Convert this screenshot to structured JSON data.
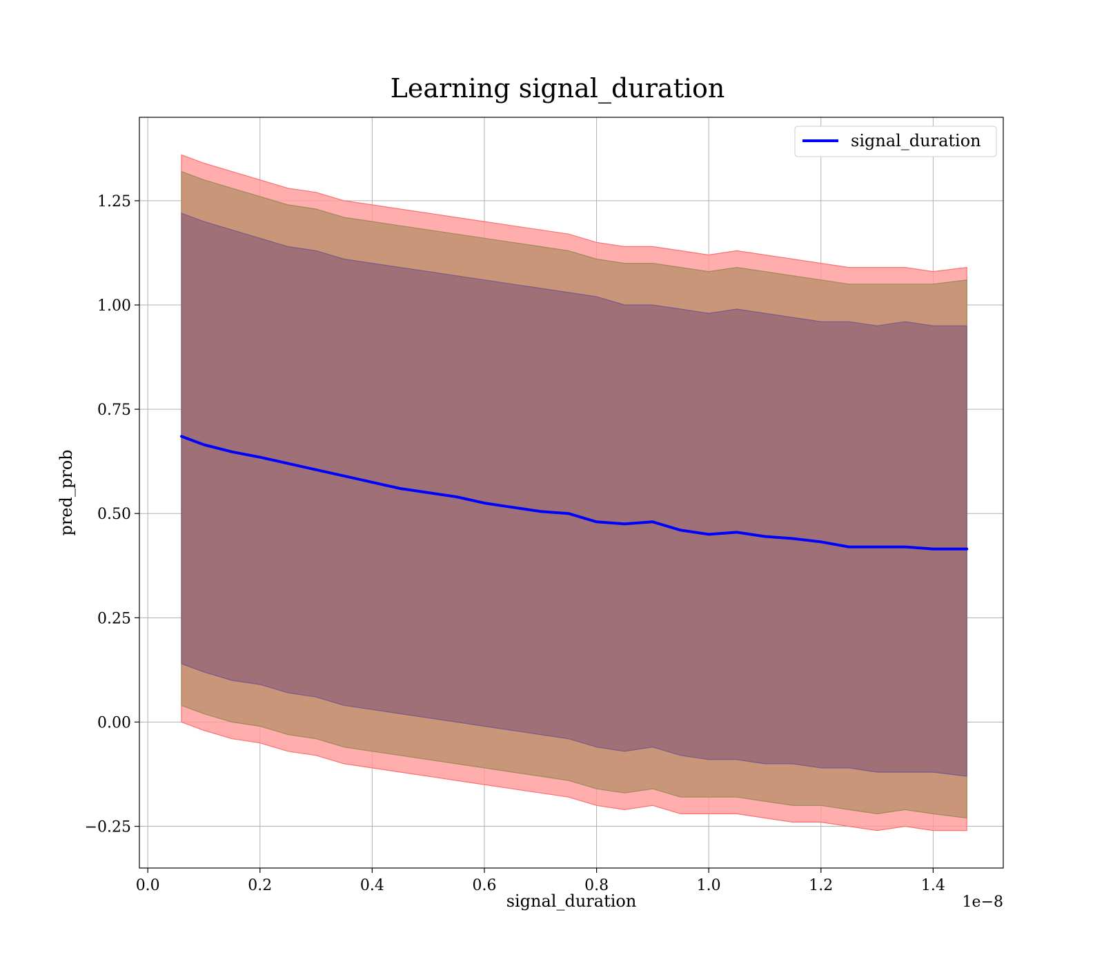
{
  "chart_data": {
    "type": "line",
    "title": "Learning signal_duration",
    "xlabel": "signal_duration",
    "ylabel": "pred_prob",
    "x_scale_label": "1e−8",
    "xlim": [
      -0.015,
      1.525
    ],
    "ylim": [
      -0.35,
      1.45
    ],
    "x_ticks": [
      0.0,
      0.2,
      0.4,
      0.6,
      0.8,
      1.0,
      1.2,
      1.4
    ],
    "x_tick_labels": [
      "0.0",
      "0.2",
      "0.4",
      "0.6",
      "0.8",
      "1.0",
      "1.2",
      "1.4"
    ],
    "y_ticks": [
      -0.25,
      0.0,
      0.25,
      0.5,
      0.75,
      1.0,
      1.25
    ],
    "y_tick_labels": [
      "−0.25",
      "0.00",
      "0.25",
      "0.50",
      "0.75",
      "1.00",
      "1.25"
    ],
    "grid": true,
    "legend": {
      "position": "top-right",
      "entries": [
        "signal_duration"
      ]
    },
    "colors": {
      "line": "#0000ff",
      "band_outer": "#ff9999",
      "band_middle": "#c9967a",
      "band_inner": "#a07078"
    },
    "series": [
      {
        "name": "signal_duration",
        "x": [
          0.06,
          0.1,
          0.15,
          0.2,
          0.25,
          0.3,
          0.35,
          0.4,
          0.45,
          0.5,
          0.55,
          0.6,
          0.65,
          0.7,
          0.75,
          0.8,
          0.85,
          0.9,
          0.95,
          1.0,
          1.05,
          1.1,
          1.15,
          1.2,
          1.25,
          1.3,
          1.35,
          1.4,
          1.46
        ],
        "y": [
          0.685,
          0.665,
          0.648,
          0.635,
          0.62,
          0.605,
          0.59,
          0.575,
          0.56,
          0.55,
          0.54,
          0.525,
          0.515,
          0.505,
          0.5,
          0.48,
          0.475,
          0.48,
          0.46,
          0.45,
          0.455,
          0.445,
          0.44,
          0.432,
          0.42,
          0.42,
          0.42,
          0.415,
          0.415
        ]
      }
    ],
    "bands": [
      {
        "level": "outer",
        "x": [
          0.06,
          0.1,
          0.15,
          0.2,
          0.25,
          0.3,
          0.35,
          0.4,
          0.45,
          0.5,
          0.55,
          0.6,
          0.65,
          0.7,
          0.75,
          0.8,
          0.85,
          0.9,
          0.95,
          1.0,
          1.05,
          1.1,
          1.15,
          1.2,
          1.25,
          1.3,
          1.35,
          1.4,
          1.46
        ],
        "upper": [
          1.36,
          1.34,
          1.32,
          1.3,
          1.28,
          1.27,
          1.25,
          1.24,
          1.23,
          1.22,
          1.21,
          1.2,
          1.19,
          1.18,
          1.17,
          1.15,
          1.14,
          1.14,
          1.13,
          1.12,
          1.13,
          1.12,
          1.11,
          1.1,
          1.09,
          1.09,
          1.09,
          1.08,
          1.09
        ],
        "lower": [
          0.0,
          -0.02,
          -0.04,
          -0.05,
          -0.07,
          -0.08,
          -0.1,
          -0.11,
          -0.12,
          -0.13,
          -0.14,
          -0.15,
          -0.16,
          -0.17,
          -0.18,
          -0.2,
          -0.21,
          -0.2,
          -0.22,
          -0.22,
          -0.22,
          -0.23,
          -0.24,
          -0.24,
          -0.25,
          -0.26,
          -0.25,
          -0.26,
          -0.26
        ]
      },
      {
        "level": "middle",
        "x": [
          0.06,
          0.1,
          0.15,
          0.2,
          0.25,
          0.3,
          0.35,
          0.4,
          0.45,
          0.5,
          0.55,
          0.6,
          0.65,
          0.7,
          0.75,
          0.8,
          0.85,
          0.9,
          0.95,
          1.0,
          1.05,
          1.1,
          1.15,
          1.2,
          1.25,
          1.3,
          1.35,
          1.4,
          1.46
        ],
        "upper": [
          1.32,
          1.3,
          1.28,
          1.26,
          1.24,
          1.23,
          1.21,
          1.2,
          1.19,
          1.18,
          1.17,
          1.16,
          1.15,
          1.14,
          1.13,
          1.11,
          1.1,
          1.1,
          1.09,
          1.08,
          1.09,
          1.08,
          1.07,
          1.06,
          1.05,
          1.05,
          1.05,
          1.05,
          1.06
        ],
        "lower": [
          0.04,
          0.02,
          0.0,
          -0.01,
          -0.03,
          -0.04,
          -0.06,
          -0.07,
          -0.08,
          -0.09,
          -0.1,
          -0.11,
          -0.12,
          -0.13,
          -0.14,
          -0.16,
          -0.17,
          -0.16,
          -0.18,
          -0.18,
          -0.18,
          -0.19,
          -0.2,
          -0.2,
          -0.21,
          -0.22,
          -0.21,
          -0.22,
          -0.23
        ]
      },
      {
        "level": "inner",
        "x": [
          0.06,
          0.1,
          0.15,
          0.2,
          0.25,
          0.3,
          0.35,
          0.4,
          0.45,
          0.5,
          0.55,
          0.6,
          0.65,
          0.7,
          0.75,
          0.8,
          0.85,
          0.9,
          0.95,
          1.0,
          1.05,
          1.1,
          1.15,
          1.2,
          1.25,
          1.3,
          1.35,
          1.4,
          1.46
        ],
        "upper": [
          1.22,
          1.2,
          1.18,
          1.16,
          1.14,
          1.13,
          1.11,
          1.1,
          1.09,
          1.08,
          1.07,
          1.06,
          1.05,
          1.04,
          1.03,
          1.02,
          1.0,
          1.0,
          0.99,
          0.98,
          0.99,
          0.98,
          0.97,
          0.96,
          0.96,
          0.95,
          0.96,
          0.95,
          0.95
        ],
        "lower": [
          0.14,
          0.12,
          0.1,
          0.09,
          0.07,
          0.06,
          0.04,
          0.03,
          0.02,
          0.01,
          0.0,
          -0.01,
          -0.02,
          -0.03,
          -0.04,
          -0.06,
          -0.07,
          -0.06,
          -0.08,
          -0.09,
          -0.09,
          -0.1,
          -0.1,
          -0.11,
          -0.11,
          -0.12,
          -0.12,
          -0.12,
          -0.13
        ]
      }
    ]
  }
}
